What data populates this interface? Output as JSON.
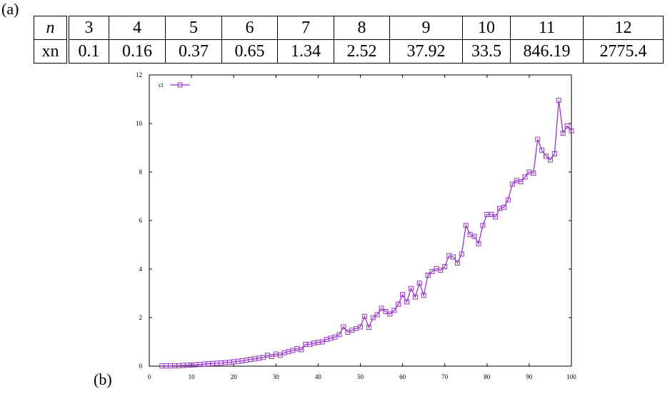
{
  "figure": {
    "label_a": "(a)",
    "label_b": "(b)"
  },
  "table": {
    "row_header_n": "n",
    "row_header_x": "xn",
    "n": [
      "3",
      "4",
      "5",
      "6",
      "7",
      "8",
      "9",
      "10",
      "11",
      "12"
    ],
    "xn": [
      "0.1",
      "0.16",
      "0.37",
      "0.65",
      "1.34",
      "2.52",
      "37.92",
      "33.5",
      "846.19",
      "2775.4"
    ]
  },
  "chart_data": {
    "type": "line",
    "title": "",
    "xlabel": "",
    "ylabel": "",
    "xlim": [
      0,
      100
    ],
    "ylim": [
      0,
      12
    ],
    "xticks": [
      0,
      10,
      20,
      30,
      40,
      50,
      60,
      70,
      80,
      90,
      100
    ],
    "yticks": [
      0,
      2,
      4,
      6,
      8,
      10,
      12
    ],
    "grid": false,
    "legend_position": "top-left",
    "marker": "square",
    "color": "#9933cc",
    "series": [
      {
        "name": "ci",
        "x": [
          3,
          4,
          5,
          6,
          7,
          8,
          9,
          10,
          11,
          12,
          13,
          14,
          15,
          16,
          17,
          18,
          19,
          20,
          21,
          22,
          23,
          24,
          25,
          26,
          27,
          28,
          29,
          30,
          31,
          32,
          33,
          34,
          35,
          36,
          37,
          38,
          39,
          40,
          41,
          42,
          43,
          44,
          45,
          46,
          47,
          48,
          49,
          50,
          51,
          52,
          53,
          54,
          55,
          56,
          57,
          58,
          59,
          60,
          61,
          62,
          63,
          64,
          65,
          66,
          67,
          68,
          69,
          70,
          71,
          72,
          73,
          74,
          75,
          76,
          77,
          78,
          79,
          80,
          81,
          82,
          83,
          84,
          85,
          86,
          87,
          88,
          89,
          90,
          91,
          92,
          93,
          94,
          95,
          96,
          97,
          98,
          99,
          100
        ],
        "y": [
          0.01,
          0.01,
          0.01,
          0.02,
          0.02,
          0.03,
          0.04,
          0.05,
          0.06,
          0.07,
          0.08,
          0.1,
          0.11,
          0.12,
          0.13,
          0.15,
          0.16,
          0.18,
          0.2,
          0.22,
          0.25,
          0.28,
          0.3,
          0.33,
          0.36,
          0.45,
          0.4,
          0.5,
          0.45,
          0.55,
          0.6,
          0.65,
          0.72,
          0.68,
          0.9,
          0.9,
          0.95,
          0.98,
          1.0,
          1.1,
          1.15,
          1.2,
          1.3,
          1.62,
          1.4,
          1.48,
          1.55,
          1.62,
          2.05,
          1.6,
          2.0,
          2.12,
          2.38,
          2.25,
          2.15,
          2.3,
          2.55,
          2.95,
          2.65,
          3.2,
          2.85,
          3.42,
          2.92,
          3.75,
          3.9,
          4.02,
          3.95,
          4.1,
          4.55,
          4.5,
          4.25,
          4.62,
          5.8,
          5.42,
          5.35,
          5.05,
          5.8,
          6.25,
          6.25,
          6.15,
          6.5,
          6.55,
          6.85,
          7.5,
          7.65,
          7.6,
          7.8,
          8.0,
          7.95,
          9.35,
          8.9,
          8.65,
          8.5,
          8.75,
          10.95,
          9.6,
          9.9,
          9.7
        ]
      }
    ]
  }
}
